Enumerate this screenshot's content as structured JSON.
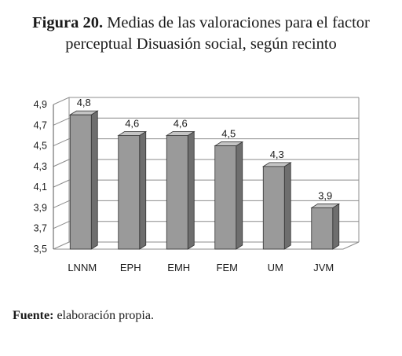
{
  "caption": {
    "label": "Figura 20.",
    "line1": "Medias de las valoraciones para el factor",
    "line2": "perceptual Disuasión social, según recinto"
  },
  "source": {
    "label": "Fuente:",
    "text": "elaboración propia."
  },
  "chart_data": {
    "type": "bar",
    "categories": [
      "LNNM",
      "EPH",
      "EMH",
      "FEM",
      "UM",
      "JVM"
    ],
    "values": [
      4.8,
      4.6,
      4.6,
      4.5,
      4.3,
      3.9
    ],
    "data_labels": [
      "4,8",
      "4,6",
      "4,6",
      "4,5",
      "4,3",
      "3,9"
    ],
    "title": "",
    "xlabel": "",
    "ylabel": "",
    "ylim": [
      3.5,
      4.9
    ],
    "yticks": [
      "3,5",
      "3,7",
      "3,9",
      "4,1",
      "4,3",
      "4,5",
      "4,7",
      "4,9"
    ],
    "grid": true,
    "style": "3d-column",
    "colors": {
      "bar_front": "#9a9a9a",
      "bar_side": "#6e6e6e",
      "bar_top": "#c4c4c4",
      "grid": "#8c8c8c",
      "wall": "#ffffff"
    }
  }
}
